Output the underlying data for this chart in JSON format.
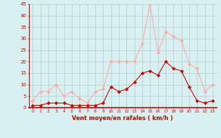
{
  "x": [
    0,
    1,
    2,
    3,
    4,
    5,
    6,
    7,
    8,
    9,
    10,
    11,
    12,
    13,
    14,
    15,
    16,
    17,
    18,
    19,
    20,
    21,
    22,
    23
  ],
  "vent_moyen": [
    1,
    1,
    2,
    2,
    2,
    1,
    1,
    1,
    1,
    2,
    9,
    7,
    8,
    11,
    15,
    16,
    14,
    20,
    17,
    16,
    9,
    3,
    2,
    3
  ],
  "en_rafales": [
    3,
    7,
    7,
    10,
    5,
    7,
    4,
    2,
    7,
    8,
    20,
    20,
    20,
    20,
    28,
    45,
    24,
    33,
    31,
    29,
    19,
    17,
    7,
    10
  ],
  "xlabel": "Vent moyen/en rafales ( km/h )",
  "ylim": [
    0,
    45
  ],
  "yticks": [
    0,
    5,
    10,
    15,
    20,
    25,
    30,
    35,
    40,
    45
  ],
  "xticks": [
    0,
    1,
    2,
    3,
    4,
    5,
    6,
    7,
    8,
    9,
    10,
    11,
    12,
    13,
    14,
    15,
    16,
    17,
    18,
    19,
    20,
    21,
    22,
    23
  ],
  "color_moyen": "#cc0000",
  "color_rafales": "#ffaaaa",
  "bg_color": "#d8f0f0",
  "grid_color": "#b0cccc",
  "marker_size": 2.5
}
